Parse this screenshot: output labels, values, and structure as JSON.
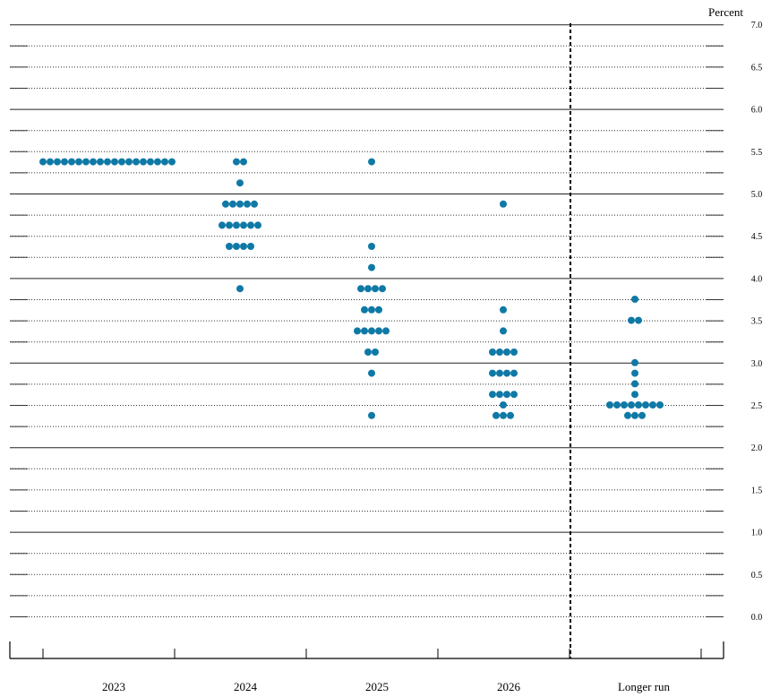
{
  "unit_label": "Percent",
  "colors": {
    "dot": "#0f79a6",
    "axis": "#000000"
  },
  "chart_data": {
    "type": "scatter",
    "title": "",
    "xlabel": "",
    "ylabel": "Percent",
    "ylim": [
      0,
      7
    ],
    "grid": true,
    "categories": [
      "2023",
      "2024",
      "2025",
      "2026",
      "Longer run"
    ],
    "y_ticks": [
      "0.0",
      "0.5",
      "1.0",
      "1.5",
      "2.0",
      "2.5",
      "3.0",
      "3.5",
      "4.0",
      "4.5",
      "5.0",
      "5.5",
      "6.0",
      "6.5",
      "7.0"
    ],
    "divider_after": "2026",
    "series": [
      {
        "category": "2023",
        "points": [
          {
            "y": 5.375,
            "count": 19
          }
        ]
      },
      {
        "category": "2024",
        "points": [
          {
            "y": 5.375,
            "count": 2
          },
          {
            "y": 5.125,
            "count": 1
          },
          {
            "y": 4.875,
            "count": 5
          },
          {
            "y": 4.625,
            "count": 6
          },
          {
            "y": 4.375,
            "count": 4
          },
          {
            "y": 3.875,
            "count": 1
          }
        ]
      },
      {
        "category": "2025",
        "points": [
          {
            "y": 5.375,
            "count": 1
          },
          {
            "y": 4.375,
            "count": 1
          },
          {
            "y": 4.125,
            "count": 1
          },
          {
            "y": 3.875,
            "count": 4
          },
          {
            "y": 3.625,
            "count": 3
          },
          {
            "y": 3.375,
            "count": 5
          },
          {
            "y": 3.125,
            "count": 2
          },
          {
            "y": 2.875,
            "count": 1
          },
          {
            "y": 2.375,
            "count": 1
          }
        ]
      },
      {
        "category": "2026",
        "points": [
          {
            "y": 4.875,
            "count": 1
          },
          {
            "y": 3.625,
            "count": 1
          },
          {
            "y": 3.375,
            "count": 1
          },
          {
            "y": 3.125,
            "count": 4
          },
          {
            "y": 2.875,
            "count": 4
          },
          {
            "y": 2.625,
            "count": 4
          },
          {
            "y": 2.5,
            "count": 1
          },
          {
            "y": 2.375,
            "count": 3
          }
        ]
      },
      {
        "category": "Longer run",
        "points": [
          {
            "y": 3.75,
            "count": 1
          },
          {
            "y": 3.5,
            "count": 2
          },
          {
            "y": 3.0,
            "count": 1
          },
          {
            "y": 2.875,
            "count": 1
          },
          {
            "y": 2.75,
            "count": 1
          },
          {
            "y": 2.625,
            "count": 1
          },
          {
            "y": 2.5,
            "count": 8
          },
          {
            "y": 2.375,
            "count": 3
          }
        ]
      }
    ]
  }
}
